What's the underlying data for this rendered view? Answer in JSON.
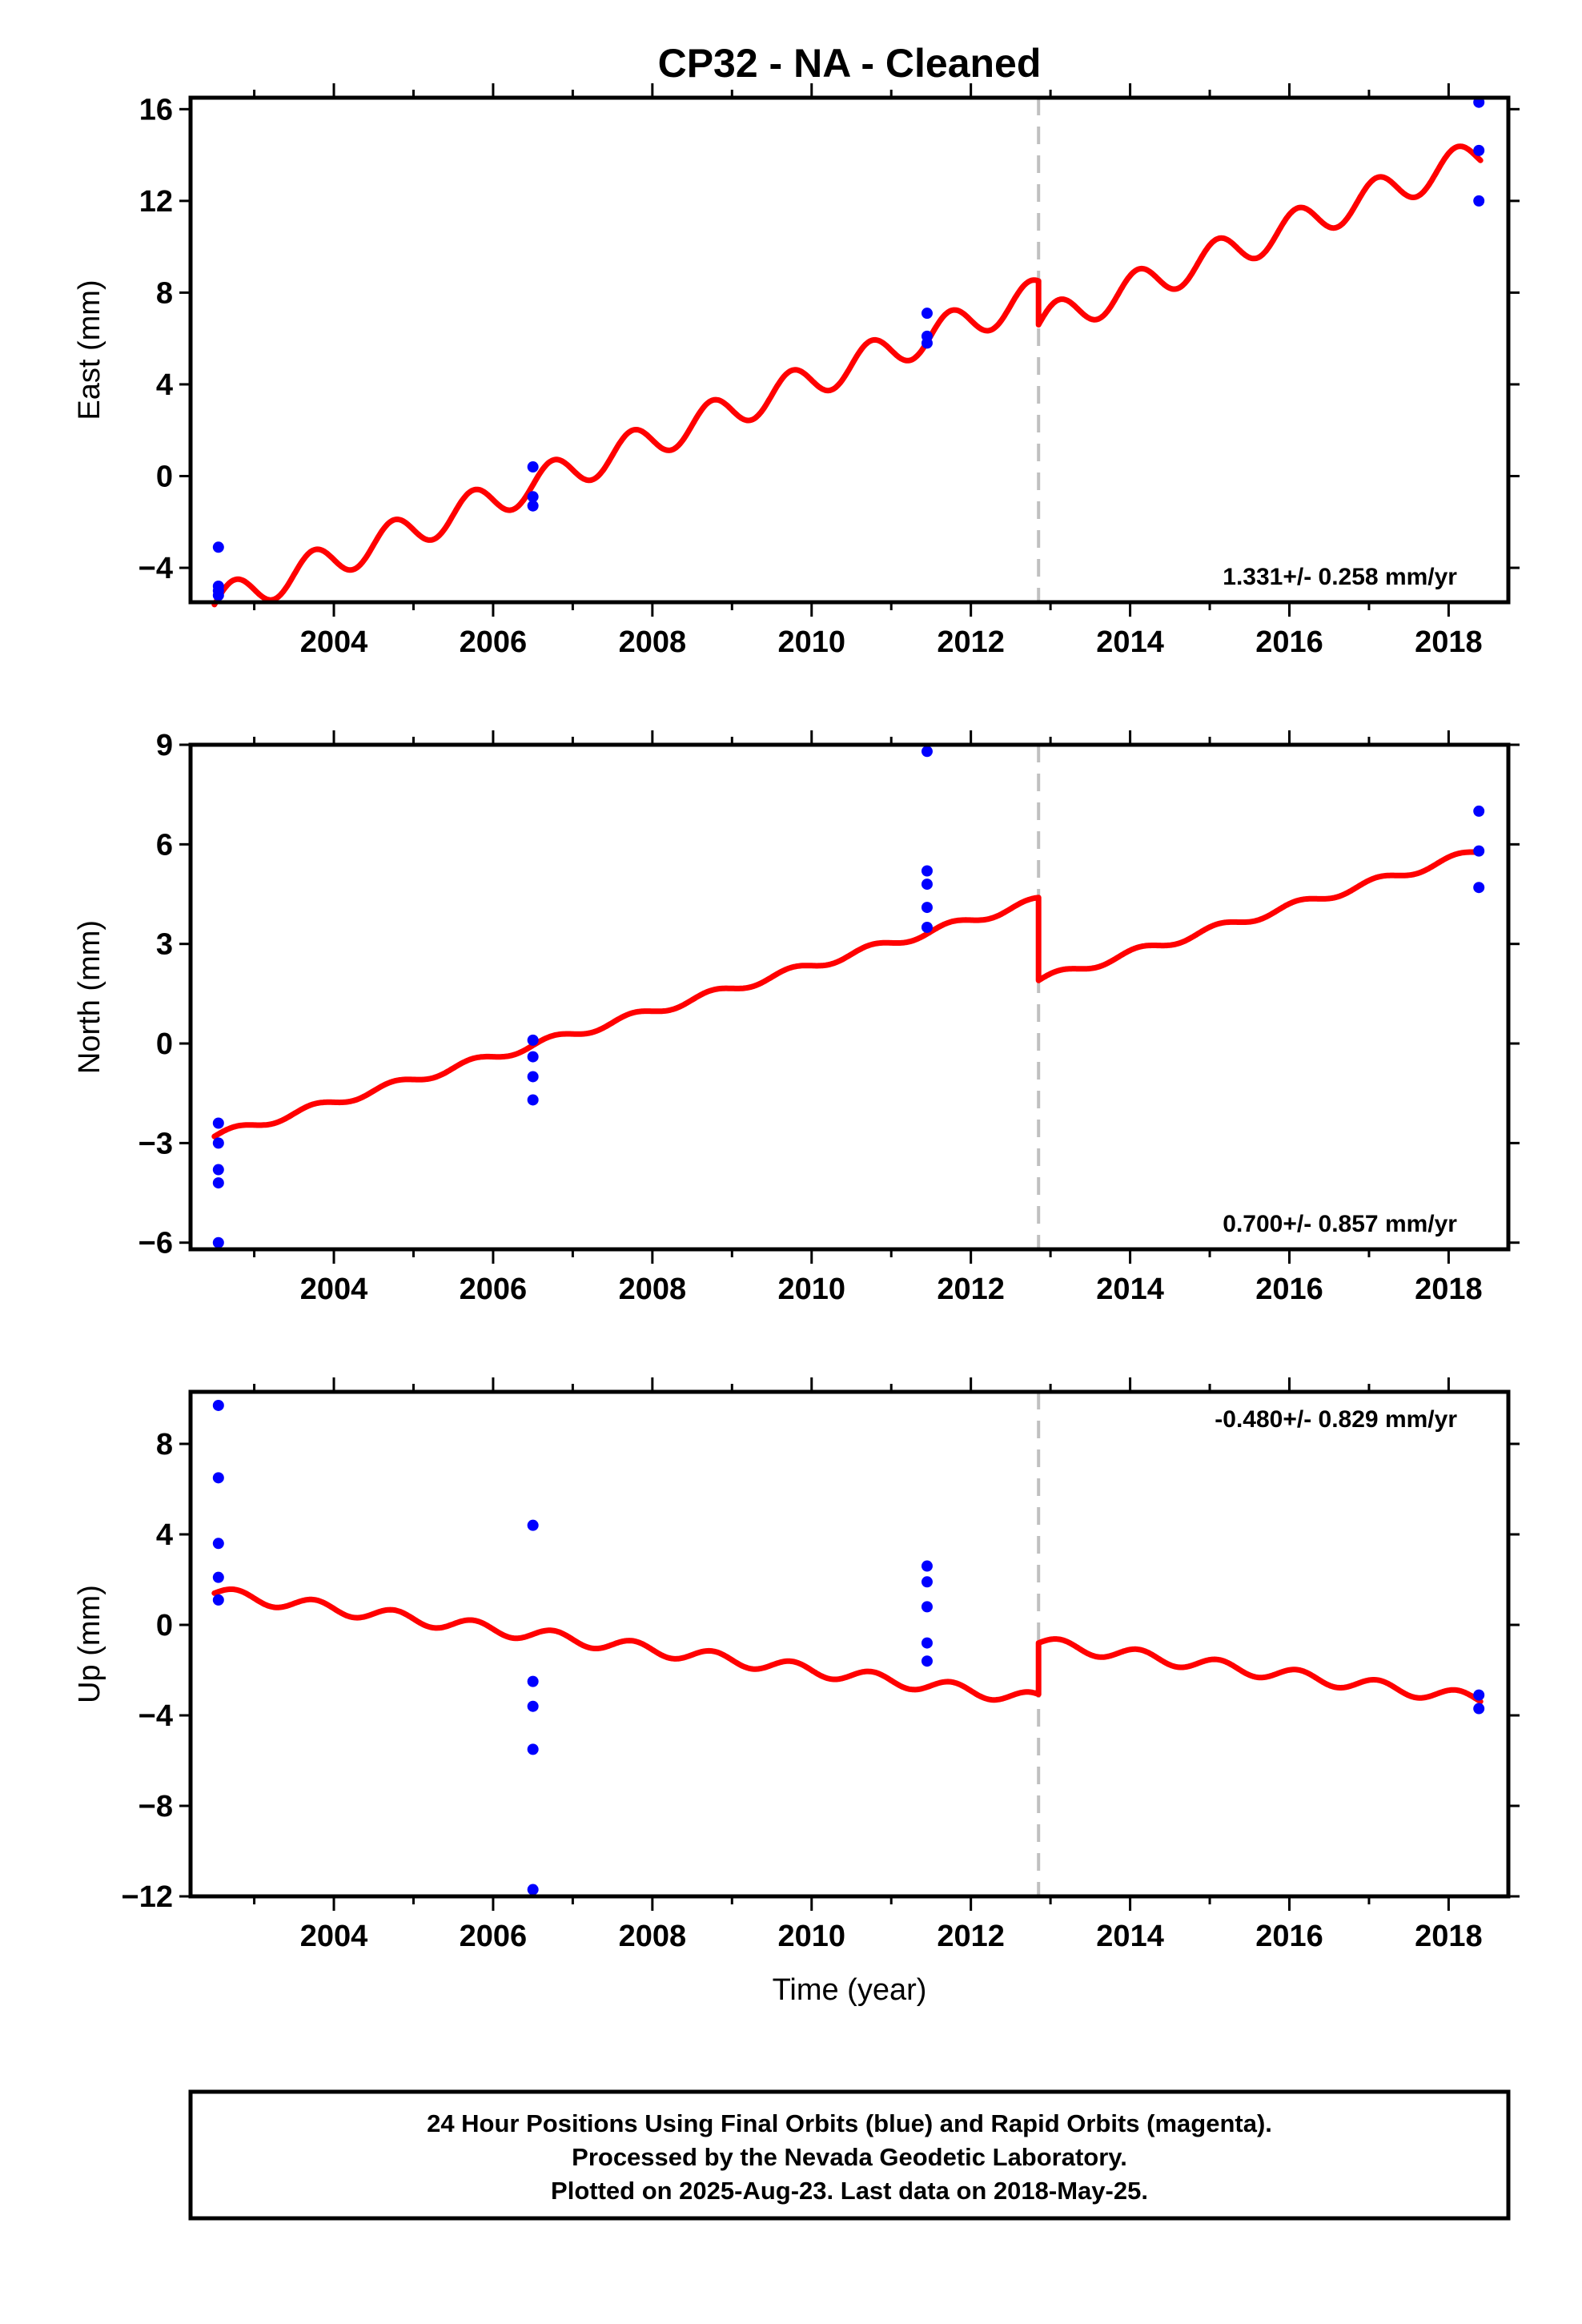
{
  "title": "CP32  - NA - Cleaned",
  "xlabel": "Time (year)",
  "footer": {
    "line1": "24 Hour Positions Using Final Orbits (blue) and Rapid Orbits (magenta).",
    "line2": "Processed by the Nevada Geodetic Laboratory.",
    "line3": "Plotted on 2025-Aug-23. Last data on 2018-May-25."
  },
  "colors": {
    "data_points": "#0000ff",
    "model": "#ff0000",
    "discontinuity": "#c0c0c0",
    "axes": "#000000"
  },
  "chart_data": [
    {
      "type": "scatter",
      "component": "east",
      "ylabel": "East (mm)",
      "xlim": [
        2002.2,
        2018.75
      ],
      "ylim": [
        -5.5,
        16.5
      ],
      "yticks": [
        -4,
        0,
        4,
        8,
        12,
        16
      ],
      "ytick_labels": [
        "−4",
        "0",
        "4",
        "8",
        "12",
        "16"
      ],
      "xticks": [
        2004,
        2006,
        2008,
        2010,
        2012,
        2014,
        2016,
        2018
      ],
      "xtick_labels": [
        "2004",
        "2006",
        "2008",
        "2010",
        "2012",
        "2014",
        "2016",
        "2018"
      ],
      "rate_label": "1.331+/- 0.258 mm/yr",
      "discontinuity_year": 2012.85,
      "points": [
        {
          "x": 2002.55,
          "y": -3.1
        },
        {
          "x": 2002.55,
          "y": -4.8
        },
        {
          "x": 2002.55,
          "y": -5.0
        },
        {
          "x": 2002.55,
          "y": -5.2
        },
        {
          "x": 2006.5,
          "y": 0.4
        },
        {
          "x": 2006.5,
          "y": -0.9
        },
        {
          "x": 2006.5,
          "y": -1.3
        },
        {
          "x": 2011.45,
          "y": 7.1
        },
        {
          "x": 2011.45,
          "y": 6.1
        },
        {
          "x": 2011.45,
          "y": 5.8
        },
        {
          "x": 2018.38,
          "y": 16.3
        },
        {
          "x": 2018.38,
          "y": 14.2
        },
        {
          "x": 2018.38,
          "y": 12.0
        }
      ],
      "model": {
        "x_start": 2002.5,
        "x_end": 2018.4,
        "segments": [
          {
            "x0": 2002.5,
            "x1": 2012.85,
            "y_at_start": -5.6,
            "y_at_end": 7.9
          },
          {
            "x0": 2012.85,
            "x1": 2018.4,
            "y_at_start": 6.6,
            "y_at_end": 14.0
          }
        ],
        "seasonal_amplitude": 0.75
      }
    },
    {
      "type": "scatter",
      "component": "north",
      "ylabel": "North (mm)",
      "xlim": [
        2002.2,
        2018.75
      ],
      "ylim": [
        -6.2,
        9.0
      ],
      "yticks": [
        -6,
        -3,
        0,
        3,
        6,
        9
      ],
      "ytick_labels": [
        "−6",
        "−3",
        "0",
        "3",
        "6",
        "9"
      ],
      "xticks": [
        2004,
        2006,
        2008,
        2010,
        2012,
        2014,
        2016,
        2018
      ],
      "xtick_labels": [
        "2004",
        "2006",
        "2008",
        "2010",
        "2012",
        "2014",
        "2016",
        "2018"
      ],
      "rate_label": "0.700+/- 0.857 mm/yr",
      "discontinuity_year": 2012.85,
      "points": [
        {
          "x": 2002.55,
          "y": -2.4
        },
        {
          "x": 2002.55,
          "y": -3.0
        },
        {
          "x": 2002.55,
          "y": -3.8
        },
        {
          "x": 2002.55,
          "y": -4.2
        },
        {
          "x": 2002.55,
          "y": -6.0
        },
        {
          "x": 2006.5,
          "y": 0.1
        },
        {
          "x": 2006.5,
          "y": -0.4
        },
        {
          "x": 2006.5,
          "y": -1.0
        },
        {
          "x": 2006.5,
          "y": -1.7
        },
        {
          "x": 2011.45,
          "y": 8.8
        },
        {
          "x": 2011.45,
          "y": 5.2
        },
        {
          "x": 2011.45,
          "y": 4.8
        },
        {
          "x": 2011.45,
          "y": 4.1
        },
        {
          "x": 2011.45,
          "y": 3.5
        },
        {
          "x": 2018.38,
          "y": 7.0
        },
        {
          "x": 2018.38,
          "y": 5.8
        },
        {
          "x": 2018.38,
          "y": 4.7
        }
      ],
      "model": {
        "x_start": 2002.5,
        "x_end": 2018.4,
        "segments": [
          {
            "x0": 2002.5,
            "x1": 2012.85,
            "y_at_start": -2.8,
            "y_at_end": 4.3
          },
          {
            "x0": 2012.85,
            "x1": 2018.4,
            "y_at_start": 1.9,
            "y_at_end": 5.8
          }
        ],
        "seasonal_amplitude": 0.12
      }
    },
    {
      "type": "scatter",
      "component": "up",
      "ylabel": "Up (mm)",
      "xlim": [
        2002.2,
        2018.75
      ],
      "ylim": [
        -12.0,
        10.3
      ],
      "yticks": [
        -12,
        -8,
        -4,
        0,
        4,
        8
      ],
      "ytick_labels": [
        "−12",
        "−8",
        "−4",
        "0",
        "4",
        "8"
      ],
      "xticks": [
        2004,
        2006,
        2008,
        2010,
        2012,
        2014,
        2016,
        2018
      ],
      "xtick_labels": [
        "2004",
        "2006",
        "2008",
        "2010",
        "2012",
        "2014",
        "2016",
        "2018"
      ],
      "rate_label": "-0.480+/- 0.829 mm/yr",
      "discontinuity_year": 2012.85,
      "points": [
        {
          "x": 2002.55,
          "y": 9.7
        },
        {
          "x": 2002.55,
          "y": 6.5
        },
        {
          "x": 2002.55,
          "y": 3.6
        },
        {
          "x": 2002.55,
          "y": 2.1
        },
        {
          "x": 2002.55,
          "y": 1.1
        },
        {
          "x": 2006.5,
          "y": 4.4
        },
        {
          "x": 2006.5,
          "y": -2.5
        },
        {
          "x": 2006.5,
          "y": -3.6
        },
        {
          "x": 2006.5,
          "y": -5.5
        },
        {
          "x": 2006.5,
          "y": -11.7
        },
        {
          "x": 2011.45,
          "y": 2.6
        },
        {
          "x": 2011.45,
          "y": 1.9
        },
        {
          "x": 2011.45,
          "y": 0.8
        },
        {
          "x": 2011.45,
          "y": -0.8
        },
        {
          "x": 2011.45,
          "y": -1.6
        },
        {
          "x": 2018.38,
          "y": -3.1
        },
        {
          "x": 2018.38,
          "y": -3.7
        }
      ],
      "model": {
        "x_start": 2002.5,
        "x_end": 2018.4,
        "segments": [
          {
            "x0": 2002.5,
            "x1": 2012.85,
            "y_at_start": 1.4,
            "y_at_end": -3.3
          },
          {
            "x0": 2012.85,
            "x1": 2018.4,
            "y_at_start": -0.8,
            "y_at_end": -3.3
          }
        ],
        "seasonal_amplitude": 0.28
      }
    }
  ]
}
